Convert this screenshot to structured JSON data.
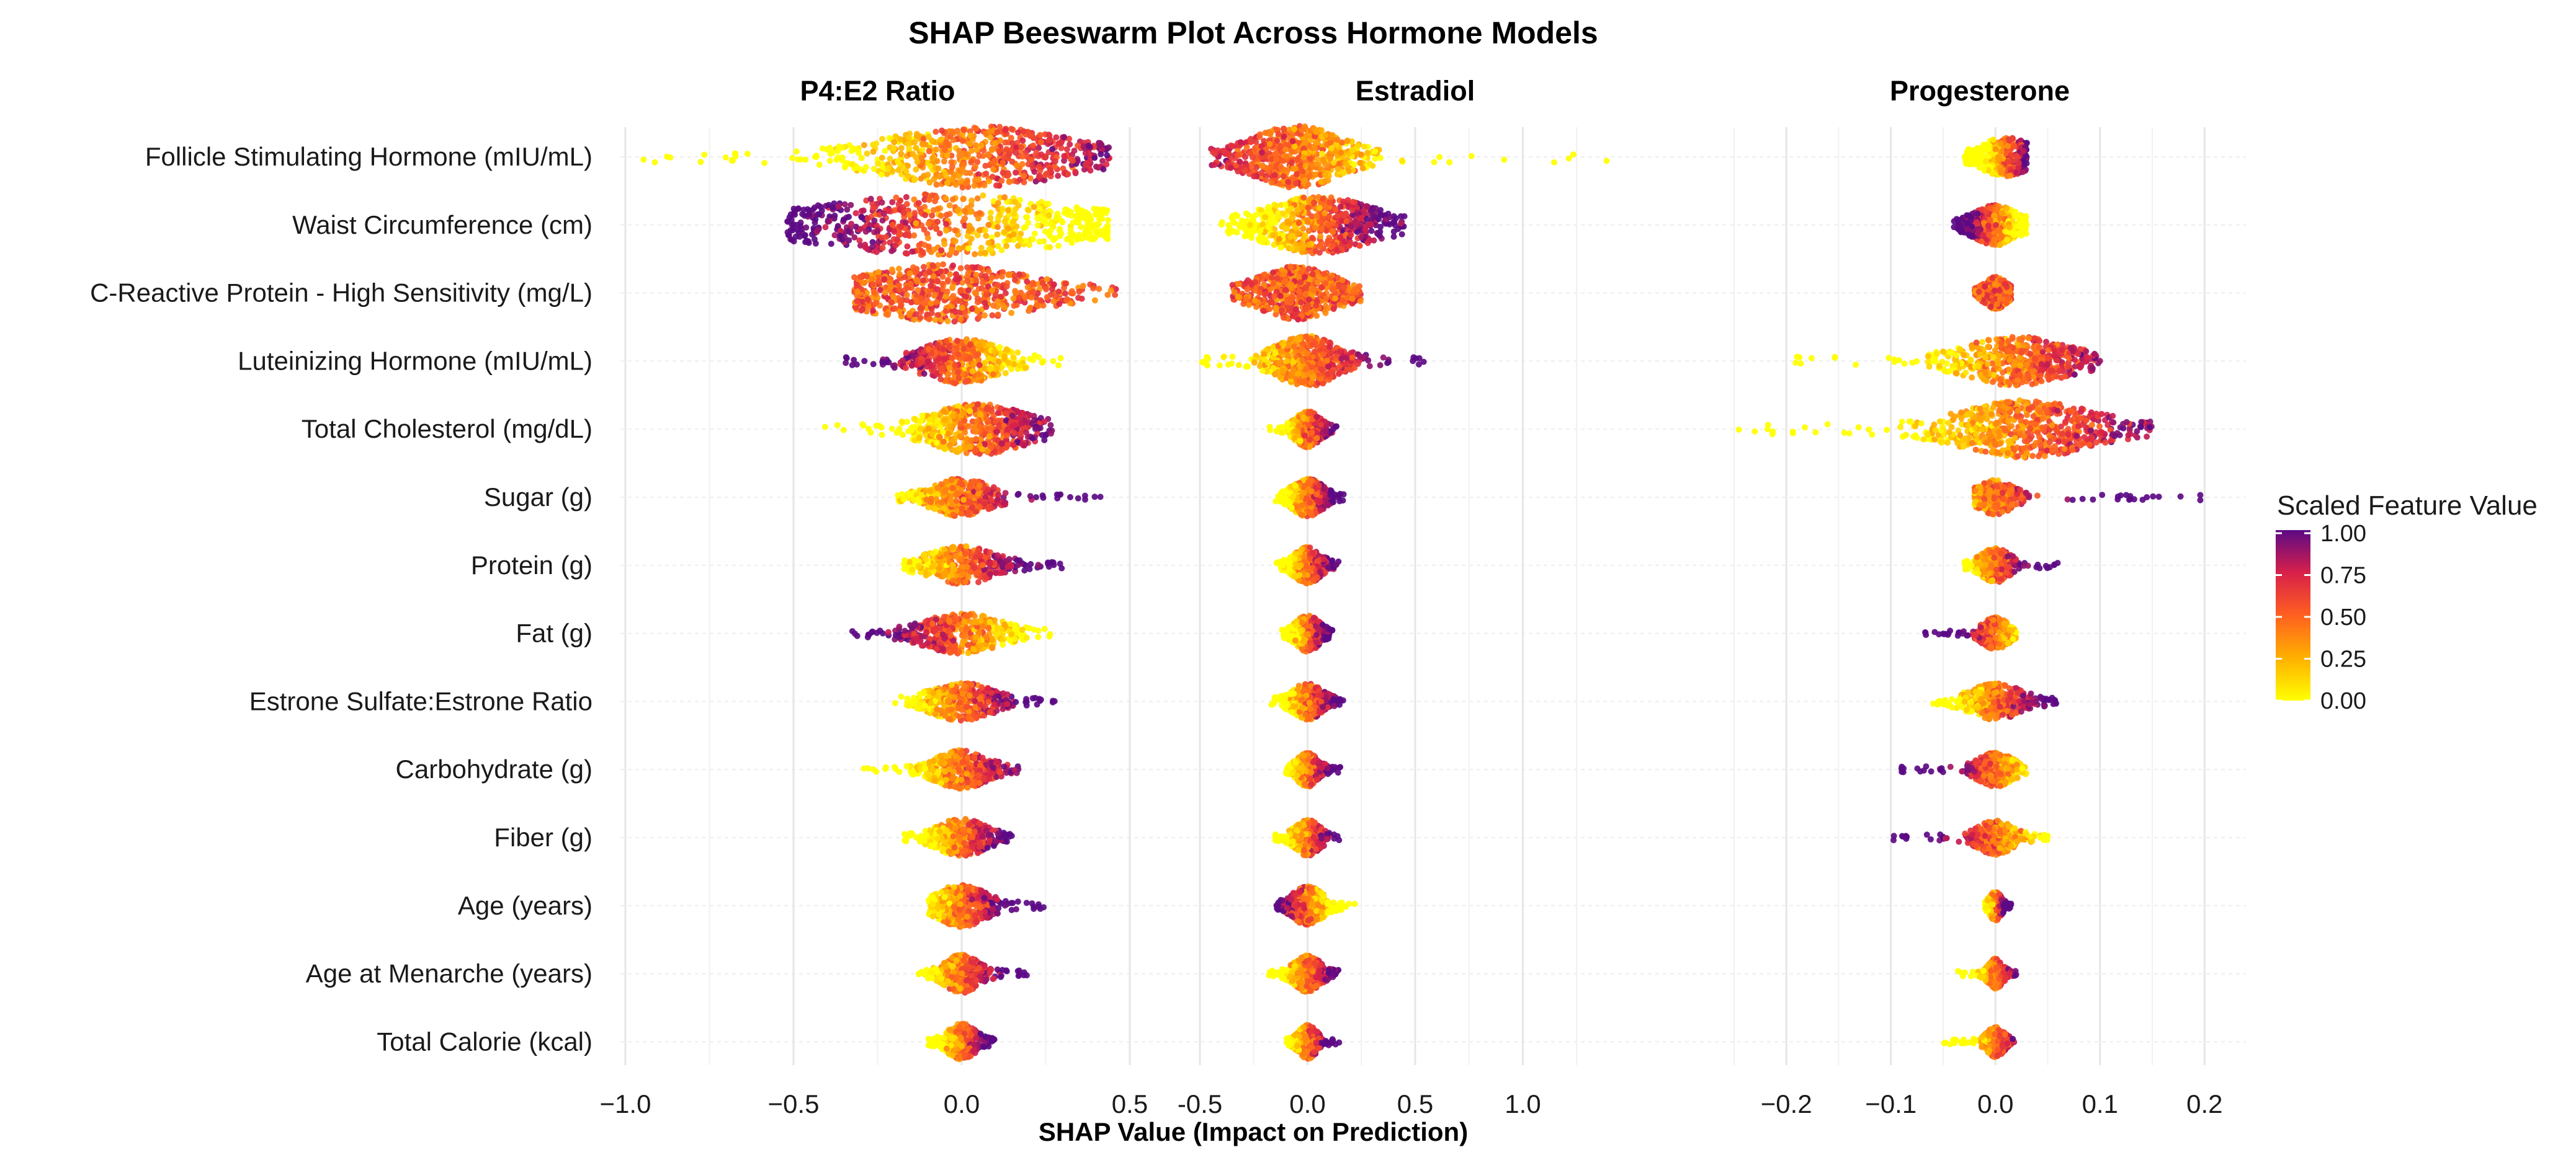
{
  "chart_data": {
    "type": "scatter",
    "subtype": "beeswarm",
    "title": "SHAP Beeswarm Plot Across Hormone Models",
    "xlabel": "SHAP Value (Impact on Prediction)",
    "features": [
      "Follicle Stimulating Hormone (mIU/mL)",
      "Waist Circumference (cm)",
      "C-Reactive Protein - High Sensitivity (mg/L)",
      "Luteinizing Hormone (mIU/mL)",
      "Total Cholesterol (mg/dL)",
      "Sugar (g)",
      "Protein (g)",
      "Fat (g)",
      "Estrone Sulfate:Estrone Ratio",
      "Carbohydrate (g)",
      "Fiber (g)",
      "Age (years)",
      "Age at Menarche (years)",
      "Total Calorie (kcal)"
    ],
    "legend": {
      "title": "Scaled Feature Value",
      "ticks": [
        "1.00",
        "0.75",
        "0.50",
        "0.25",
        "0.00"
      ],
      "colors": [
        "#FFFF00",
        "#FFB000",
        "#FF6020",
        "#D8204A",
        "#5C0A86"
      ],
      "placement": "right"
    },
    "panels": [
      {
        "name": "P4:E2 Ratio",
        "xlim": [
          -1.0,
          0.5
        ],
        "tick_values": [
          -1.0,
          -0.5,
          0.0,
          0.5
        ],
        "tick_labels": [
          "−1.0",
          "−0.5",
          "0.0",
          "0.5"
        ],
        "series": [
          {
            "min": -0.95,
            "max": 0.44,
            "q1": -0.2,
            "q3": 0.18,
            "center": 0.05,
            "spread": 0.3,
            "density": 1.0,
            "hi_side": 1
          },
          {
            "min": -0.52,
            "max": 0.44,
            "q1": -0.3,
            "q3": 0.25,
            "center": -0.05,
            "spread": 0.38,
            "density": 1.0,
            "hi_side": -1
          },
          {
            "min": -0.32,
            "max": 0.48,
            "q1": -0.15,
            "q3": 0.2,
            "center": -0.05,
            "spread": 0.28,
            "density": 0.9,
            "hi_side": 0
          },
          {
            "min": -0.35,
            "max": 0.3,
            "q1": -0.08,
            "q3": 0.08,
            "center": 0.0,
            "spread": 0.12,
            "density": 0.6,
            "hi_side": -1
          },
          {
            "min": -0.42,
            "max": 0.27,
            "q1": -0.05,
            "q3": 0.15,
            "center": 0.05,
            "spread": 0.15,
            "density": 0.75,
            "hi_side": 1
          },
          {
            "min": -0.2,
            "max": 0.45,
            "q1": -0.06,
            "q3": 0.06,
            "center": 0.0,
            "spread": 0.09,
            "density": 0.45,
            "hi_side": 1
          },
          {
            "min": -0.18,
            "max": 0.3,
            "q1": -0.06,
            "q3": 0.08,
            "center": 0.0,
            "spread": 0.1,
            "density": 0.45,
            "hi_side": 1
          },
          {
            "min": -0.33,
            "max": 0.28,
            "q1": -0.08,
            "q3": 0.08,
            "center": 0.0,
            "spread": 0.12,
            "density": 0.5,
            "hi_side": -1
          },
          {
            "min": -0.2,
            "max": 0.28,
            "q1": -0.06,
            "q3": 0.07,
            "center": 0.0,
            "spread": 0.1,
            "density": 0.45,
            "hi_side": 1
          },
          {
            "min": -0.33,
            "max": 0.17,
            "q1": -0.05,
            "q3": 0.06,
            "center": 0.0,
            "spread": 0.09,
            "density": 0.45,
            "hi_side": 1
          },
          {
            "min": -0.17,
            "max": 0.15,
            "q1": -0.05,
            "q3": 0.05,
            "center": 0.0,
            "spread": 0.07,
            "density": 0.45,
            "hi_side": 1
          },
          {
            "min": -0.1,
            "max": 0.25,
            "q1": -0.05,
            "q3": 0.05,
            "center": 0.0,
            "spread": 0.08,
            "density": 0.55,
            "hi_side": 1
          },
          {
            "min": -0.13,
            "max": 0.2,
            "q1": -0.04,
            "q3": 0.03,
            "center": 0.0,
            "spread": 0.06,
            "density": 0.45,
            "hi_side": 1
          },
          {
            "min": -0.1,
            "max": 0.1,
            "q1": -0.03,
            "q3": 0.03,
            "center": 0.0,
            "spread": 0.05,
            "density": 0.4,
            "hi_side": 1
          }
        ]
      },
      {
        "name": "Estradiol",
        "xlim": [
          -0.5,
          1.5
        ],
        "tick_values": [
          -0.5,
          0.0,
          0.5,
          1.0
        ],
        "tick_labels": [
          "-0.5",
          "0.0",
          "0.5",
          "1.0"
        ],
        "series": [
          {
            "min": -0.45,
            "max": 1.4,
            "q1": -0.15,
            "q3": 0.15,
            "center": -0.05,
            "spread": 0.3,
            "density": 1.0,
            "hi_side": -1
          },
          {
            "min": -0.4,
            "max": 0.45,
            "q1": -0.15,
            "q3": 0.2,
            "center": 0.05,
            "spread": 0.25,
            "density": 0.9,
            "hi_side": 1
          },
          {
            "min": -0.35,
            "max": 0.25,
            "q1": -0.15,
            "q3": 0.1,
            "center": -0.05,
            "spread": 0.18,
            "density": 0.8,
            "hi_side": 0
          },
          {
            "min": -0.5,
            "max": 0.55,
            "q1": -0.1,
            "q3": 0.1,
            "center": 0.0,
            "spread": 0.22,
            "density": 0.75,
            "hi_side": 1
          },
          {
            "min": -0.18,
            "max": 0.15,
            "q1": -0.04,
            "q3": 0.04,
            "center": 0.0,
            "spread": 0.06,
            "density": 0.4,
            "hi_side": 1
          },
          {
            "min": -0.15,
            "max": 0.18,
            "q1": -0.05,
            "q3": 0.05,
            "center": 0.0,
            "spread": 0.07,
            "density": 0.45,
            "hi_side": 1
          },
          {
            "min": -0.15,
            "max": 0.15,
            "q1": -0.05,
            "q3": 0.04,
            "center": 0.0,
            "spread": 0.06,
            "density": 0.4,
            "hi_side": 1
          },
          {
            "min": -0.12,
            "max": 0.12,
            "q1": -0.04,
            "q3": 0.04,
            "center": 0.0,
            "spread": 0.06,
            "density": 0.4,
            "hi_side": 1
          },
          {
            "min": -0.18,
            "max": 0.17,
            "q1": -0.05,
            "q3": 0.05,
            "center": 0.0,
            "spread": 0.07,
            "density": 0.4,
            "hi_side": 1
          },
          {
            "min": -0.1,
            "max": 0.17,
            "q1": -0.03,
            "q3": 0.04,
            "center": 0.0,
            "spread": 0.05,
            "density": 0.35,
            "hi_side": 1
          },
          {
            "min": -0.15,
            "max": 0.15,
            "q1": -0.04,
            "q3": 0.04,
            "center": 0.0,
            "spread": 0.05,
            "density": 0.4,
            "hi_side": 1
          },
          {
            "min": -0.15,
            "max": 0.22,
            "q1": -0.05,
            "q3": 0.05,
            "center": 0.0,
            "spread": 0.06,
            "density": 0.45,
            "hi_side": -1
          },
          {
            "min": -0.18,
            "max": 0.15,
            "q1": -0.04,
            "q3": 0.05,
            "center": 0.0,
            "spread": 0.06,
            "density": 0.4,
            "hi_side": 1
          },
          {
            "min": -0.1,
            "max": 0.15,
            "q1": -0.03,
            "q3": 0.03,
            "center": 0.0,
            "spread": 0.04,
            "density": 0.35,
            "hi_side": 1
          }
        ]
      },
      {
        "name": "Progesterone",
        "xlim": [
          -0.25,
          0.22
        ],
        "tick_values": [
          -0.2,
          -0.1,
          0.0,
          0.1,
          0.2
        ],
        "tick_labels": [
          "−0.2",
          "−0.1",
          "0.0",
          "0.1",
          "0.2"
        ],
        "series": [
          {
            "min": -0.03,
            "max": 0.03,
            "q1": -0.015,
            "q3": 0.02,
            "center": 0.01,
            "spread": 0.02,
            "density": 0.45,
            "hi_side": 1
          },
          {
            "min": -0.04,
            "max": 0.03,
            "q1": -0.02,
            "q3": 0.01,
            "center": 0.0,
            "spread": 0.02,
            "density": 0.5,
            "hi_side": -1
          },
          {
            "min": -0.02,
            "max": 0.015,
            "q1": -0.008,
            "q3": 0.008,
            "center": 0.0,
            "spread": 0.01,
            "density": 0.3,
            "hi_side": 0
          },
          {
            "min": -0.2,
            "max": 0.1,
            "q1": -0.03,
            "q3": 0.04,
            "center": 0.02,
            "spread": 0.05,
            "density": 0.7,
            "hi_side": 1
          },
          {
            "min": -0.25,
            "max": 0.15,
            "q1": -0.02,
            "q3": 0.07,
            "center": 0.03,
            "spread": 0.06,
            "density": 0.9,
            "hi_side": 1
          },
          {
            "min": -0.02,
            "max": 0.2,
            "q1": -0.01,
            "q3": 0.015,
            "center": 0.0,
            "spread": 0.015,
            "density": 0.35,
            "hi_side": 1
          },
          {
            "min": -0.03,
            "max": 0.06,
            "q1": -0.01,
            "q3": 0.01,
            "center": 0.0,
            "spread": 0.015,
            "density": 0.35,
            "hi_side": 1
          },
          {
            "min": -0.07,
            "max": 0.02,
            "q1": -0.01,
            "q3": 0.008,
            "center": 0.0,
            "spread": 0.012,
            "density": 0.3,
            "hi_side": -1
          },
          {
            "min": -0.06,
            "max": 0.06,
            "q1": -0.015,
            "q3": 0.02,
            "center": 0.0,
            "spread": 0.02,
            "density": 0.4,
            "hi_side": 1
          },
          {
            "min": -0.09,
            "max": 0.03,
            "q1": -0.012,
            "q3": 0.012,
            "center": 0.0,
            "spread": 0.015,
            "density": 0.35,
            "hi_side": -1
          },
          {
            "min": -0.1,
            "max": 0.05,
            "q1": -0.012,
            "q3": 0.012,
            "center": 0.0,
            "spread": 0.015,
            "density": 0.35,
            "hi_side": -1
          },
          {
            "min": -0.01,
            "max": 0.015,
            "q1": -0.004,
            "q3": 0.004,
            "center": 0.0,
            "spread": 0.005,
            "density": 0.25,
            "hi_side": 1
          },
          {
            "min": -0.04,
            "max": 0.02,
            "q1": -0.005,
            "q3": 0.005,
            "center": 0.0,
            "spread": 0.006,
            "density": 0.25,
            "hi_side": 1
          },
          {
            "min": -0.05,
            "max": 0.02,
            "q1": -0.006,
            "q3": 0.006,
            "center": 0.0,
            "spread": 0.008,
            "density": 0.25,
            "hi_side": 1
          }
        ]
      }
    ]
  }
}
